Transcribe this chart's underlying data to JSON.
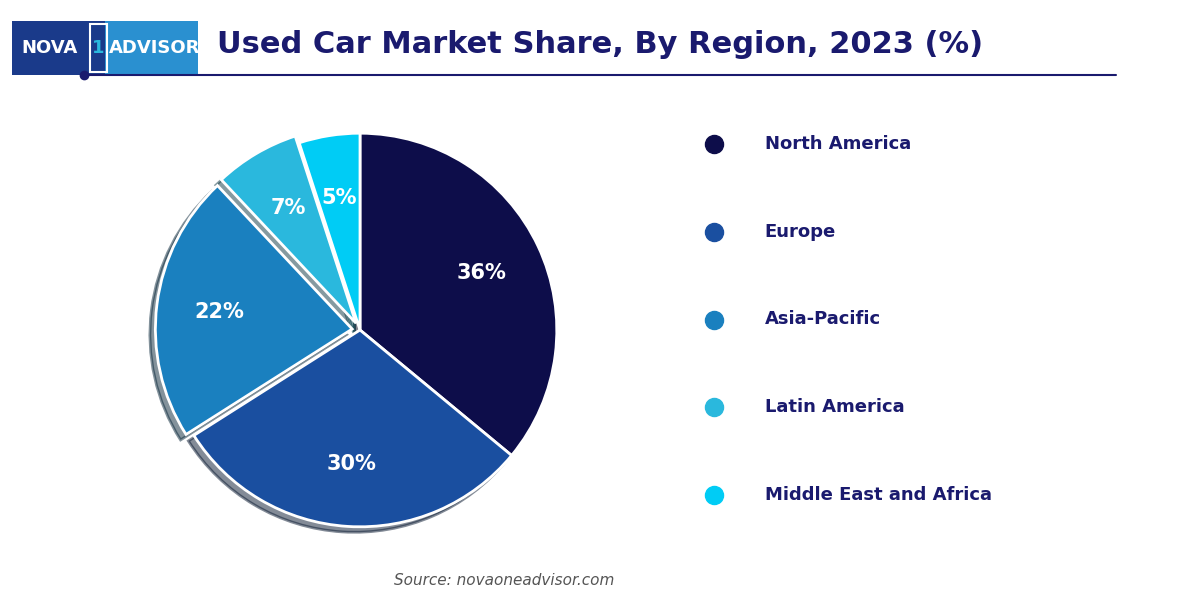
{
  "title": "Used Car Market Share, By Region, 2023 (%)",
  "title_color": "#1a1a6e",
  "title_fontsize": 22,
  "labels": [
    "North America",
    "Europe",
    "Asia-Pacific",
    "Latin America",
    "Middle East and Africa"
  ],
  "values": [
    36,
    30,
    22,
    7,
    5
  ],
  "colors": [
    "#0d0d4a",
    "#1a4fa0",
    "#1a80bf",
    "#2ab8dd",
    "#00ccf5"
  ],
  "explode": [
    0,
    0,
    0.04,
    0.04,
    0
  ],
  "label_colors": [
    "white",
    "white",
    "white",
    "white",
    "white"
  ],
  "pct_fontsize": 15,
  "legend_labels": [
    "North America",
    "Europe",
    "Asia-Pacific",
    "Latin America",
    "Middle East and Africa"
  ],
  "legend_colors": [
    "#0d0d4a",
    "#1a4fa0",
    "#1a80bf",
    "#2ab8dd",
    "#00ccf5"
  ],
  "source_text": "Source: novaoneadvisor.com",
  "source_color": "#555555",
  "source_fontsize": 11,
  "background_color": "#ffffff",
  "logo_text_nova": "NOVA",
  "logo_text_1": "1",
  "logo_text_advisor": "ADVISOR",
  "logo_bg_left": "#1a3a8a",
  "logo_bg_right": "#2a90d0",
  "logo_1_color": "#2ab8dd",
  "line_color": "#1a1a6e",
  "legend_text_color": "#1a1a6e",
  "legend_fontsize": 13,
  "shadow_color": "#cccccc"
}
